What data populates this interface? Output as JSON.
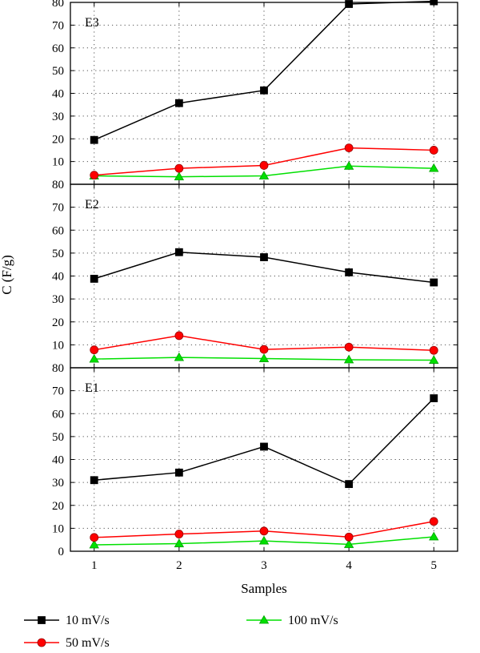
{
  "chart_data": {
    "type": "line",
    "xlabel": "Samples",
    "ylabel": "C (F/g)",
    "x_ticks": [
      "1",
      "2",
      "3",
      "4",
      "5"
    ],
    "y_ticks": [
      "0",
      "10",
      "20",
      "30",
      "40",
      "50",
      "60",
      "70",
      "80"
    ],
    "grid": true,
    "legend_position": "bottom",
    "legend": [
      {
        "name": "10 mV/s",
        "color": "#000000",
        "marker": "square"
      },
      {
        "name": "50 mV/s",
        "color": "#ff0000",
        "marker": "circle"
      },
      {
        "name": "100 mV/s",
        "color": "#00e000",
        "marker": "triangle"
      }
    ],
    "panels": [
      {
        "label": "E3",
        "ylim": [
          0,
          80
        ],
        "x": [
          1,
          2,
          3,
          4,
          5
        ],
        "series": [
          {
            "name": "10 mV/s",
            "values": [
              19.5,
              35.7,
              41.3,
              79.3,
              80.5
            ]
          },
          {
            "name": "50 mV/s",
            "values": [
              4.0,
              7.0,
              8.3,
              16.0,
              15.0
            ]
          },
          {
            "name": "100 mV/s",
            "values": [
              3.7,
              3.3,
              3.7,
              8.0,
              7.0
            ]
          }
        ]
      },
      {
        "label": "E2",
        "ylim": [
          0,
          80
        ],
        "x": [
          1,
          2,
          3,
          4,
          5
        ],
        "series": [
          {
            "name": "10 mV/s",
            "values": [
              38.8,
              50.4,
              48.2,
              41.6,
              37.2
            ]
          },
          {
            "name": "50 mV/s",
            "values": [
              7.8,
              14.0,
              8.0,
              9.0,
              7.6
            ]
          },
          {
            "name": "100 mV/s",
            "values": [
              3.8,
              4.5,
              4.0,
              3.5,
              3.3
            ]
          }
        ]
      },
      {
        "label": "E1",
        "ylim": [
          0,
          80
        ],
        "x": [
          1,
          2,
          3,
          4,
          5
        ],
        "series": [
          {
            "name": "10 mV/s",
            "values": [
              31.0,
              34.3,
              45.6,
              29.3,
              66.7
            ]
          },
          {
            "name": "50 mV/s",
            "values": [
              6.0,
              7.5,
              8.8,
              6.2,
              13.0
            ]
          },
          {
            "name": "100 mV/s",
            "values": [
              2.8,
              3.3,
              4.5,
              3.0,
              6.3
            ]
          }
        ]
      }
    ]
  }
}
